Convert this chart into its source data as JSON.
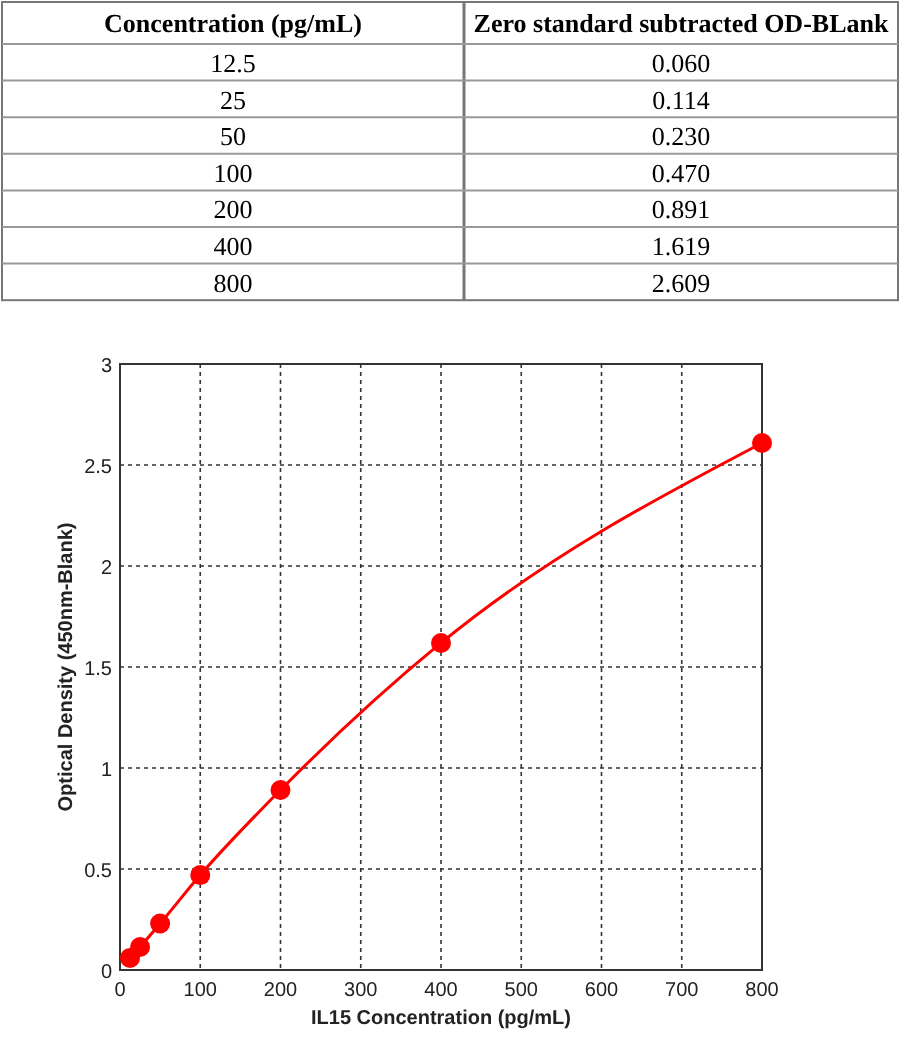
{
  "chart_data": [
    {
      "type": "other",
      "xlabel": "Concentration (pg/mL)",
      "ylabel": "Zero standard subtracted OD-BLank",
      "categories": [
        "12.5",
        "25",
        "50",
        "100",
        "200",
        "400",
        "800"
      ],
      "value_labels": [
        "0.060",
        "0.114",
        "0.230",
        "0.470",
        "0.891",
        "1.619",
        "2.609"
      ]
    },
    {
      "type": "line",
      "xlabel": "IL15 Concentration (pg/mL)",
      "ylabel": "Optical Density (450nm-Blank)",
      "x": [
        12.5,
        25,
        50,
        100,
        200,
        400,
        800
      ],
      "values": [
        0.06,
        0.114,
        0.23,
        0.47,
        0.891,
        1.619,
        2.609
      ],
      "color": "#ff0000",
      "marker": "circle",
      "line_style": "solid",
      "grid": true,
      "xlim": [
        0,
        800
      ],
      "xticks": [
        0,
        100,
        200,
        300,
        400,
        500,
        600,
        700,
        800
      ],
      "ylim": [
        0,
        3
      ],
      "yticks": [
        0,
        0.5,
        1,
        1.5,
        2,
        2.5,
        3
      ]
    }
  ]
}
